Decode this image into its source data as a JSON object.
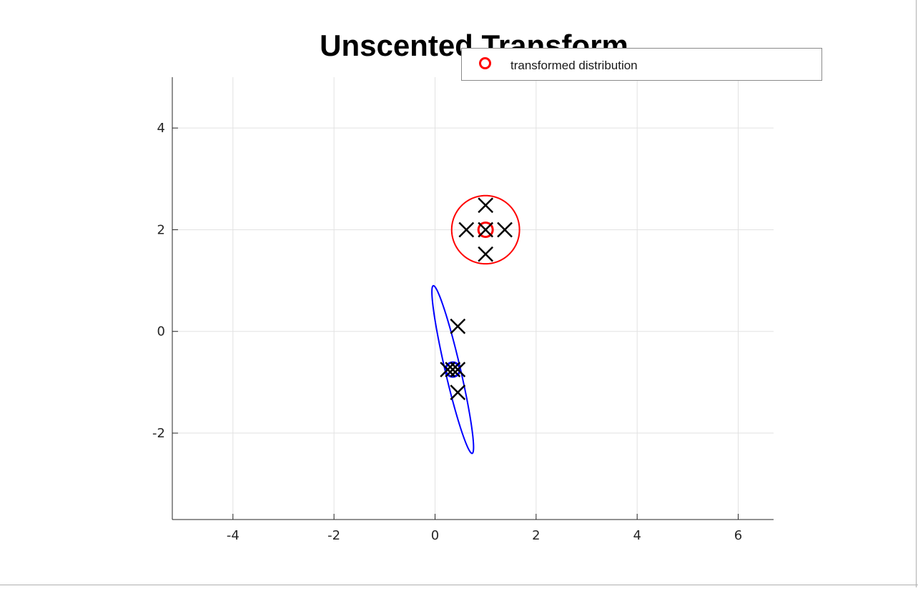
{
  "chart_data": {
    "type": "scatter",
    "title": "Unscented Transform",
    "xlabel": "",
    "ylabel": "",
    "xlim": [
      -5.2,
      6.7
    ],
    "ylim": [
      -3.7,
      5.0
    ],
    "xticks": [
      -4,
      -2,
      0,
      2,
      4,
      6
    ],
    "yticks": [
      -2,
      0,
      2,
      4
    ],
    "xtick_labels": [
      "-4",
      "-2",
      "0",
      "2",
      "4",
      "6"
    ],
    "ytick_labels": [
      "-2",
      "0",
      "2",
      "4"
    ],
    "grid": true,
    "legend_position": "top-right",
    "legend": [
      {
        "label": "transformed distribution",
        "marker": "circle",
        "color": "#ff0000"
      }
    ],
    "series": [
      {
        "kind": "ellipse",
        "color": "#ff0000",
        "center": [
          1.0,
          2.0
        ],
        "covariance": [
          [
            0.45,
            0.0
          ],
          [
            0.0,
            0.45
          ]
        ]
      },
      {
        "kind": "mean-marker",
        "color": "#ff0000",
        "points": [
          [
            1.0,
            2.0
          ]
        ]
      },
      {
        "kind": "sigma-points",
        "marker": "x",
        "color": "#000000",
        "points": [
          [
            1.0,
            2.0
          ],
          [
            1.38,
            2.0
          ],
          [
            0.62,
            2.0
          ],
          [
            1.0,
            2.48
          ],
          [
            1.0,
            1.52
          ]
        ]
      },
      {
        "kind": "ellipse",
        "color": "#0000ff",
        "center": [
          0.35,
          -0.75
        ],
        "covariance": [
          [
            0.17,
            -0.63
          ],
          [
            -0.63,
            2.72
          ]
        ]
      },
      {
        "kind": "mean-marker",
        "color": "#0000ff",
        "points": [
          [
            0.35,
            -0.75
          ]
        ]
      },
      {
        "kind": "sigma-points",
        "marker": "x",
        "color": "#000000",
        "points": [
          [
            0.35,
            -0.75
          ],
          [
            0.45,
            -0.75
          ],
          [
            0.25,
            -0.75
          ],
          [
            0.45,
            0.1
          ],
          [
            0.45,
            -1.2
          ]
        ]
      }
    ]
  }
}
